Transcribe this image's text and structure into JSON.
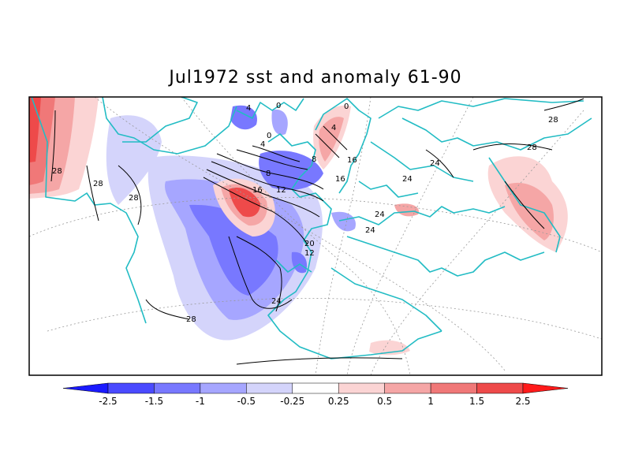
{
  "title": "Jul1972 sst and anomaly 61-90",
  "contour_labels": [
    "4",
    "0",
    "0",
    "4",
    "0",
    "4",
    "8",
    "8",
    "16",
    "12",
    "16",
    "16",
    "28",
    "28",
    "28",
    "28",
    "28",
    "24",
    "24",
    "24",
    "20",
    "12",
    "24",
    "24",
    "28"
  ],
  "colorbar": {
    "ticks": [
      "-2.5",
      "-1.5",
      "-1",
      "-0.5",
      "-0.25",
      "0.25",
      "0.5",
      "1",
      "1.5",
      "2.5"
    ],
    "colors": [
      "#1a1aff",
      "#4a4aff",
      "#7878ff",
      "#a6a6ff",
      "#d4d4fb",
      "#ffffff",
      "#fbd4d4",
      "#f5a6a6",
      "#f07878",
      "#ee4a4a",
      "#ff1a1a"
    ]
  }
}
